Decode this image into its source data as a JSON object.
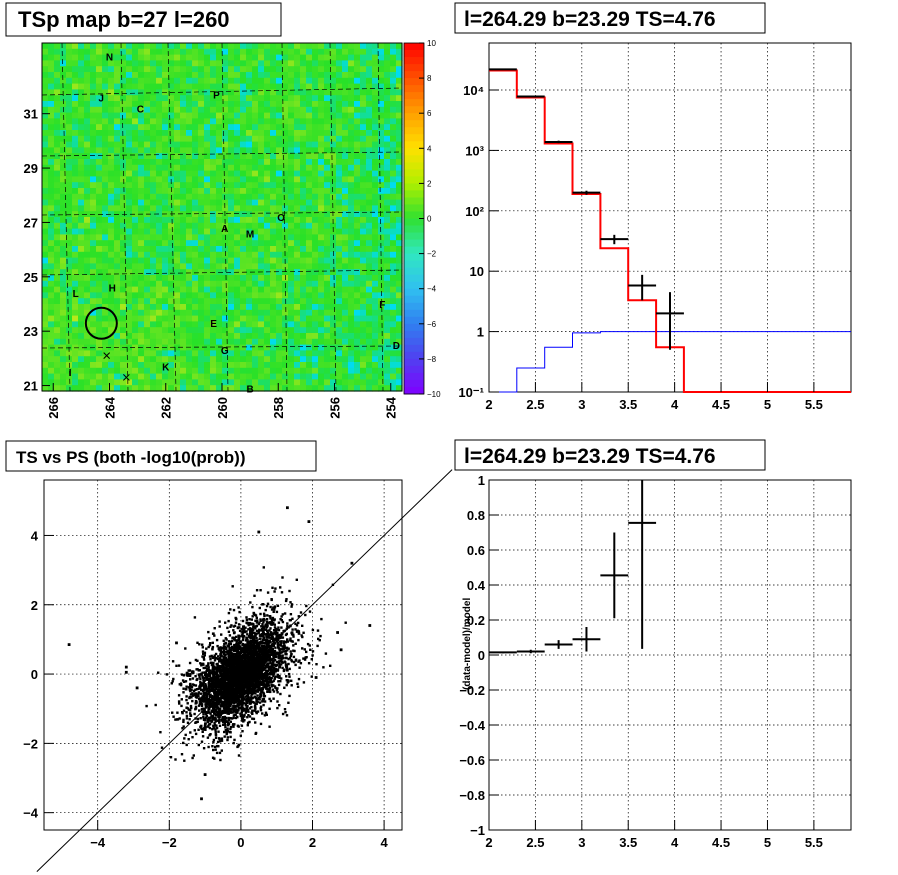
{
  "chart_data": [
    {
      "type": "heatmap",
      "title": "TSp map b=27 l=260",
      "x_ticks": [
        "266",
        "264",
        "262",
        "260",
        "258",
        "256",
        "254"
      ],
      "x_tick_values": [
        266,
        264,
        262,
        260,
        258,
        256,
        254
      ],
      "xlim": [
        266.4,
        253.6
      ],
      "y_ticks": [
        "21",
        "23",
        "25",
        "27",
        "29",
        "31"
      ],
      "y_tick_values": [
        21,
        23,
        25,
        27,
        29,
        31
      ],
      "ylim": [
        20.8,
        33.6
      ],
      "colorbar": {
        "range": [
          -10,
          10
        ],
        "ticks": [
          "10",
          "8",
          "6",
          "4",
          "2",
          "0",
          "−2",
          "−4",
          "−6",
          "−8",
          "−10"
        ],
        "tick_values": [
          10,
          8,
          6,
          4,
          2,
          0,
          -2,
          -4,
          -6,
          -8,
          -10
        ]
      },
      "source_labels": [
        {
          "text": "N",
          "x": 264.0,
          "y": 33.1
        },
        {
          "text": "J",
          "x": 264.3,
          "y": 31.6
        },
        {
          "text": "C",
          "x": 262.9,
          "y": 31.2
        },
        {
          "text": "P",
          "x": 260.2,
          "y": 31.7
        },
        {
          "text": "A",
          "x": 259.9,
          "y": 26.8
        },
        {
          "text": "M",
          "x": 259.0,
          "y": 26.6
        },
        {
          "text": "O",
          "x": 257.9,
          "y": 27.2
        },
        {
          "text": "L",
          "x": 265.2,
          "y": 24.4
        },
        {
          "text": "H",
          "x": 263.9,
          "y": 24.6
        },
        {
          "text": "F",
          "x": 254.3,
          "y": 24.0
        },
        {
          "text": "E",
          "x": 260.3,
          "y": 23.3
        },
        {
          "text": "G",
          "x": 259.9,
          "y": 22.3
        },
        {
          "text": "D",
          "x": 253.8,
          "y": 22.5
        },
        {
          "text": "K",
          "x": 262.0,
          "y": 21.7
        },
        {
          "text": "I",
          "x": 265.4,
          "y": 21.5
        },
        {
          "text": "B",
          "x": 259.0,
          "y": 20.9
        }
      ],
      "marker_circle": {
        "x": 264.29,
        "y": 23.29,
        "r": 0.55
      },
      "cross_markers": [
        {
          "x": 264.1,
          "y": 22.1
        },
        {
          "x": 263.4,
          "y": 21.3
        }
      ]
    },
    {
      "type": "line",
      "title": "l=264.29 b=23.29 TS=4.76",
      "x_ticks": [
        "2",
        "2.5",
        "3",
        "3.5",
        "4",
        "4.5",
        "5",
        "5.5"
      ],
      "x_tick_values": [
        2,
        2.5,
        3,
        3.5,
        4,
        4.5,
        5,
        5.5
      ],
      "xlim": [
        2,
        5.9
      ],
      "y_scale": "log",
      "ylim": [
        0.1,
        60000
      ],
      "y_ticks": [
        "10⁻¹",
        "1",
        "10",
        "10²",
        "10³",
        "10⁴"
      ],
      "y_tick_values": [
        0.1,
        1,
        10,
        100,
        1000,
        10000
      ],
      "bin_edges": [
        2,
        2.3,
        2.6,
        2.9,
        3.2,
        3.5,
        3.8,
        4.1,
        4.4,
        4.7,
        5.0,
        5.3,
        5.6,
        5.9
      ],
      "series": [
        {
          "values": [
            21000,
            7500,
            1300,
            190,
            24,
            3.3,
            0.55,
            0.1,
            0.1,
            0.1,
            0.1,
            0.1,
            0.1
          ],
          "color": "#ff0000"
        },
        {
          "values": [
            0.1,
            0.25,
            0.55,
            0.95,
            1,
            1,
            1,
            1,
            1,
            1,
            1,
            1,
            1
          ],
          "color": "#0000ff"
        }
      ],
      "data_points": [
        {
          "x": 2.15,
          "y": 22000,
          "ylo": 21700,
          "yhi": 22300
        },
        {
          "x": 2.45,
          "y": 7800,
          "ylo": 7600,
          "yhi": 8000
        },
        {
          "x": 2.75,
          "y": 1380,
          "ylo": 1320,
          "yhi": 1450
        },
        {
          "x": 3.05,
          "y": 200,
          "ylo": 185,
          "yhi": 215
        },
        {
          "x": 3.35,
          "y": 34,
          "ylo": 28,
          "yhi": 40
        },
        {
          "x": 3.65,
          "y": 5.8,
          "ylo": 3.3,
          "yhi": 8.7
        },
        {
          "x": 3.95,
          "y": 2.0,
          "ylo": 0.5,
          "yhi": 4.5
        }
      ]
    },
    {
      "type": "scatter",
      "title": "TS vs PS (both -log10(prob))",
      "x_ticks": [
        "−4",
        "−2",
        "0",
        "2",
        "4"
      ],
      "x_tick_values": [
        -4,
        -2,
        0,
        2,
        4
      ],
      "xlim": [
        -5.5,
        4.5
      ],
      "y_ticks": [
        "−4",
        "−2",
        "0",
        "2",
        "4"
      ],
      "y_tick_values": [
        -4,
        -2,
        0,
        2,
        4
      ],
      "ylim": [
        -4.5,
        5.6
      ],
      "reference_line": {
        "slope": 1,
        "intercept": 0
      },
      "outliers": [
        [
          -4.8,
          0.85
        ],
        [
          -3.2,
          0.2
        ],
        [
          -3.2,
          0.05
        ],
        [
          -1.4,
          -1.2
        ],
        [
          -1.1,
          -3.6
        ],
        [
          2.1,
          -0.1
        ],
        [
          2.8,
          0.7
        ],
        [
          3.1,
          3.2
        ],
        [
          3.6,
          1.4
        ],
        [
          1.3,
          4.8
        ],
        [
          1.9,
          4.4
        ],
        [
          2.7,
          1.2
        ],
        [
          -2.9,
          -0.4
        ],
        [
          -1.8,
          0.9
        ],
        [
          -1.0,
          -2.9
        ],
        [
          0.5,
          4.1
        ]
      ],
      "cloud": {
        "center": [
          0,
          0
        ],
        "sigma_x": 0.8,
        "sigma_y": 0.9,
        "correlation": 0.55,
        "count": 4200
      }
    },
    {
      "type": "scatter",
      "title": "l=264.29 b=23.29 TS=4.76",
      "ylabel": "(data-model)/model",
      "x_ticks": [
        "2",
        "2.5",
        "3",
        "3.5",
        "4",
        "4.5",
        "5",
        "5.5"
      ],
      "x_tick_values": [
        2,
        2.5,
        3,
        3.5,
        4,
        4.5,
        5,
        5.5
      ],
      "xlim": [
        2,
        5.9
      ],
      "y_ticks": [
        "−1",
        "−0.8",
        "−0.6",
        "−0.4",
        "−0.2",
        "0",
        "0.2",
        "0.4",
        "0.6",
        "0.8",
        "1"
      ],
      "y_tick_values": [
        -1,
        -0.8,
        -0.6,
        -0.4,
        -0.2,
        0,
        0.2,
        0.4,
        0.6,
        0.8,
        1
      ],
      "ylim": [
        -1,
        1
      ],
      "points": [
        {
          "x": 2.15,
          "y": 0.015,
          "xerr": 0.15,
          "yerr": 0.005
        },
        {
          "x": 2.45,
          "y": 0.02,
          "xerr": 0.15,
          "yerr": 0.01
        },
        {
          "x": 2.75,
          "y": 0.06,
          "xerr": 0.15,
          "yerr": 0.025
        },
        {
          "x": 3.05,
          "y": 0.09,
          "xerr": 0.15,
          "yerr": 0.07
        },
        {
          "x": 3.35,
          "y": 0.455,
          "xerr": 0.15,
          "yerr": 0.245
        },
        {
          "x": 3.65,
          "y": 0.755,
          "xerr": 0.15,
          "yerr": 0.72
        }
      ]
    }
  ]
}
